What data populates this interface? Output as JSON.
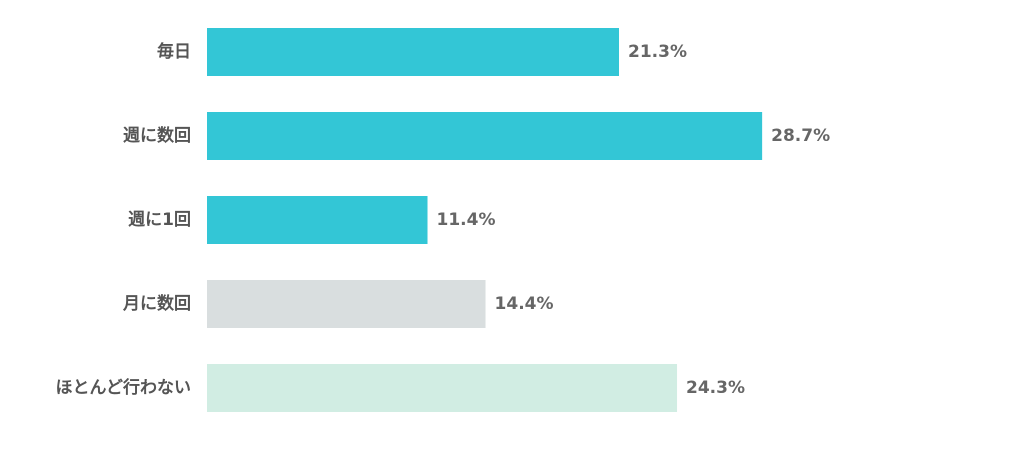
{
  "chart_data": {
    "type": "bar",
    "orientation": "horizontal",
    "title": "",
    "xlabel": "",
    "ylabel": "",
    "categories": [
      "毎日",
      "週に数回",
      "週に1回",
      "月に数回",
      "ほとんど行わない"
    ],
    "values": [
      21.3,
      28.7,
      11.4,
      14.4,
      24.3
    ],
    "value_labels": [
      "21.3%",
      "28.7%",
      "11.4%",
      "14.4%",
      "24.3%"
    ],
    "unit": "%",
    "bar_colors": [
      "#33c6d6",
      "#33c6d6",
      "#33c6d6",
      "#d9dedf",
      "#d1ede3"
    ],
    "grid": false,
    "legend": "none"
  }
}
